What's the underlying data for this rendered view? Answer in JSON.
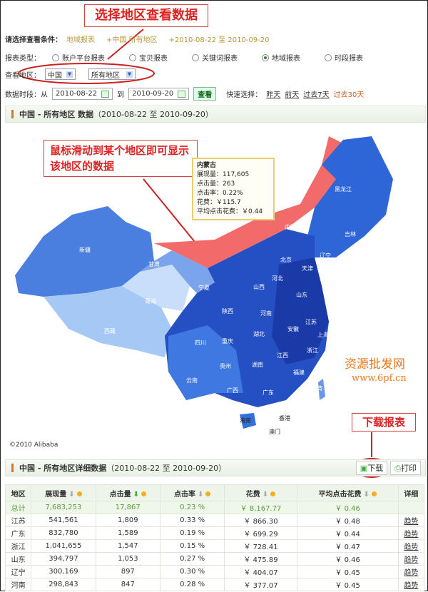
{
  "annotations": {
    "select_region": "选择地区查看数据",
    "hover_hint": "鼠标滑动到某个地区即可显示该地区的数据",
    "download_report": "下载报表"
  },
  "conditions": {
    "label": "请选择查看条件：",
    "report": "地域报表",
    "region": "+中国 所有地区",
    "range": "+2010-08-22 至 2010-09-20"
  },
  "report_type": {
    "label": "报表类型：",
    "options": [
      {
        "label": "账户平台报表",
        "selected": false
      },
      {
        "label": "宝贝报表",
        "selected": false
      },
      {
        "label": "关键词报表",
        "selected": false
      },
      {
        "label": "地域报表",
        "selected": true
      },
      {
        "label": "时段报表",
        "selected": false
      }
    ]
  },
  "region": {
    "label": "查看地区：",
    "country": "中国",
    "area": "所有地区"
  },
  "period": {
    "label": "数据时段：从",
    "from": "2010-08-22",
    "to_label": "到",
    "to": "2010-09-20",
    "view": "查看",
    "quick_label": "快速选择：",
    "quick": [
      "昨天",
      "前天",
      "过去7天",
      "过去30天"
    ]
  },
  "map_panel": {
    "title": "中国 - 所有地区 数据",
    "range": "（2010-08-22 至 2010-09-20）",
    "copyright": "©2010 Alibaba"
  },
  "tooltip": {
    "name": "内蒙古",
    "lines": [
      "展现量：117,605",
      "点击量：263",
      "点击率：0.22%",
      "花费：￥115.7",
      "平均点击花费：￥0.44"
    ]
  },
  "provinces": [
    "黑龙江",
    "吉林",
    "辽宁",
    "内蒙古",
    "新疆",
    "西藏",
    "青海",
    "甘肃",
    "宁夏",
    "陕西",
    "山西",
    "河北",
    "北京",
    "天津",
    "山东",
    "河南",
    "江苏",
    "安徽",
    "湖北",
    "重庆",
    "四川",
    "浙江",
    "上海",
    "江西",
    "湖南",
    "贵州",
    "云南",
    "广西",
    "广东",
    "福建",
    "台湾",
    "香港",
    "澳门",
    "海南"
  ],
  "table_panel": {
    "title": "中国 - 所有地区详细数据",
    "range": "（2010-08-22 至 2010-09-20）",
    "download": "下载",
    "print": "打印"
  },
  "table": {
    "headers": [
      "地区",
      "展现量",
      "点击量",
      "点击率",
      "花费",
      "平均点击花费",
      "详细"
    ],
    "total": [
      "总计",
      "7,683,253",
      "17,867",
      "0.23 %",
      "￥ 8,167.77",
      "￥ 0.46",
      ""
    ],
    "rows": [
      [
        "江苏",
        "541,561",
        "1,809",
        "0.33 %",
        "￥ 866.30",
        "￥ 0.48",
        "趋势"
      ],
      [
        "广东",
        "832,780",
        "1,589",
        "0.19 %",
        "￥ 699.29",
        "￥ 0.44",
        "趋势"
      ],
      [
        "浙江",
        "1,041,655",
        "1,547",
        "0.15 %",
        "￥ 728.41",
        "￥ 0.47",
        "趋势"
      ],
      [
        "山东",
        "394,797",
        "1,053",
        "0.27 %",
        "￥ 475.89",
        "￥ 0.46",
        "趋势"
      ],
      [
        "辽宁",
        "300,169",
        "897",
        "0.30 %",
        "￥ 404.07",
        "￥ 0.45",
        "趋势"
      ],
      [
        "河南",
        "298,843",
        "847",
        "0.28 %",
        "￥ 377.07",
        "￥ 0.45",
        "趋势"
      ]
    ]
  },
  "watermark": {
    "text": "资源批发网",
    "url": "www.6pf.cn"
  }
}
